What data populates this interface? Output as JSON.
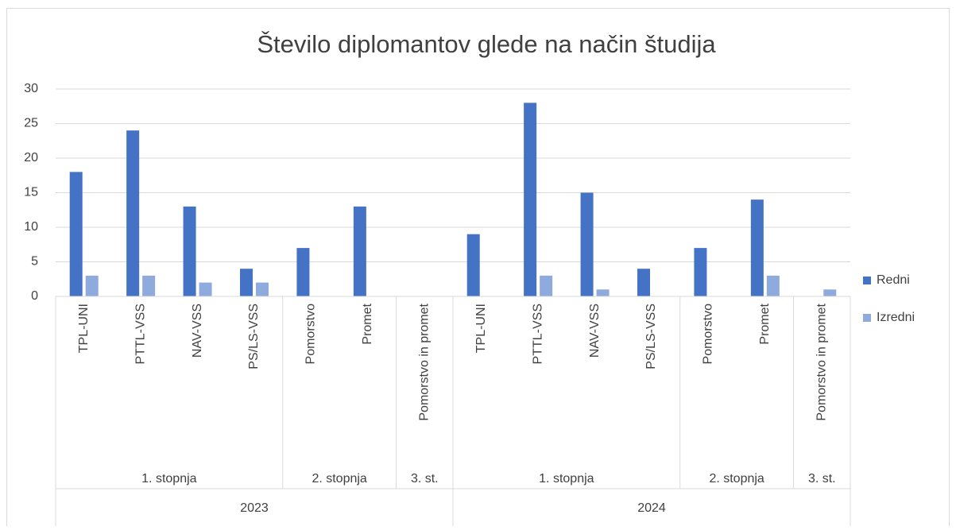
{
  "chart_data": {
    "type": "bar",
    "title": "Število diplomantov glede na način študija",
    "categories": [
      "TPL-UNI",
      "PTTL-VSS",
      "NAV-VSS",
      "PS/LS-VSS",
      "Pomorstvo",
      "Promet",
      "Pomorstvo in promet",
      "TPL-UNI",
      "PTTL-VSS",
      "NAV-VSS",
      "PS/LS-VSS",
      "Pomorstvo",
      "Promet",
      "Pomorstvo in promet"
    ],
    "category_groups": [
      {
        "name": "2023",
        "subgroups": [
          {
            "name": "1. stopnja",
            "size": 4
          },
          {
            "name": "2. stopnja",
            "size": 2
          },
          {
            "name": "3. st.",
            "size": 1
          }
        ]
      },
      {
        "name": "2024",
        "subgroups": [
          {
            "name": "1. stopnja",
            "size": 4
          },
          {
            "name": "2. stopnja",
            "size": 2
          },
          {
            "name": "3. st.",
            "size": 1
          }
        ]
      }
    ],
    "series": [
      {
        "name": "Redni",
        "color": "#4472c4",
        "values": [
          18,
          24,
          13,
          4,
          7,
          13,
          0,
          9,
          28,
          15,
          4,
          7,
          14,
          0
        ]
      },
      {
        "name": "Izredni",
        "color": "#8faadc",
        "values": [
          3,
          3,
          2,
          2,
          0,
          0,
          0,
          0,
          3,
          1,
          0,
          0,
          3,
          1
        ]
      }
    ],
    "ylim": [
      0,
      30
    ],
    "yticks": [
      0,
      5,
      10,
      15,
      20,
      25,
      30
    ],
    "grid": true,
    "legend": "right"
  }
}
